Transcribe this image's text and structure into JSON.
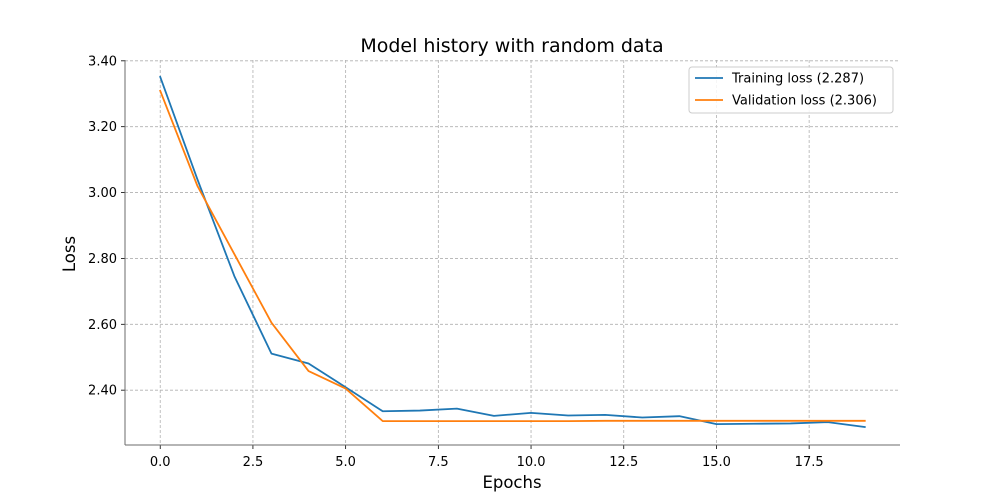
{
  "chart_data": {
    "type": "line",
    "title": "Model history with random data",
    "xlabel": "Epochs",
    "ylabel": "Loss",
    "xlim": [
      -0.95,
      19.95
    ],
    "ylim": [
      2.2335,
      3.4025
    ],
    "xticks": [
      0,
      2.5,
      5,
      7.5,
      10,
      12.5,
      15,
      17.5
    ],
    "xtick_labels": [
      "0.0",
      "2.5",
      "5.0",
      "7.5",
      "10.0",
      "12.5",
      "15.0",
      "17.5"
    ],
    "yticks": [
      2.4,
      2.6,
      2.8,
      3.0,
      3.2,
      3.4
    ],
    "ytick_labels": [
      "2.40",
      "2.60",
      "2.80",
      "3.00",
      "3.20",
      "3.40"
    ],
    "grid": true,
    "legend_position": "top-right",
    "x": [
      0,
      1,
      2,
      3,
      4,
      5,
      6,
      7,
      8,
      9,
      10,
      11,
      12,
      13,
      14,
      15,
      16,
      17,
      18,
      19
    ],
    "series": [
      {
        "name": "Training loss (2.287)",
        "color": "#1f77b4",
        "values": [
          3.351,
          3.041,
          2.746,
          2.511,
          2.481,
          2.409,
          2.336,
          2.338,
          2.344,
          2.322,
          2.331,
          2.323,
          2.325,
          2.317,
          2.321,
          2.297,
          2.298,
          2.299,
          2.303,
          2.288
        ]
      },
      {
        "name": "Validation loss (2.306)",
        "color": "#ff7f0e",
        "values": [
          3.309,
          3.021,
          2.813,
          2.605,
          2.458,
          2.405,
          2.306,
          2.306,
          2.306,
          2.306,
          2.306,
          2.306,
          2.307,
          2.307,
          2.307,
          2.307,
          2.307,
          2.307,
          2.307,
          2.307
        ]
      }
    ]
  }
}
